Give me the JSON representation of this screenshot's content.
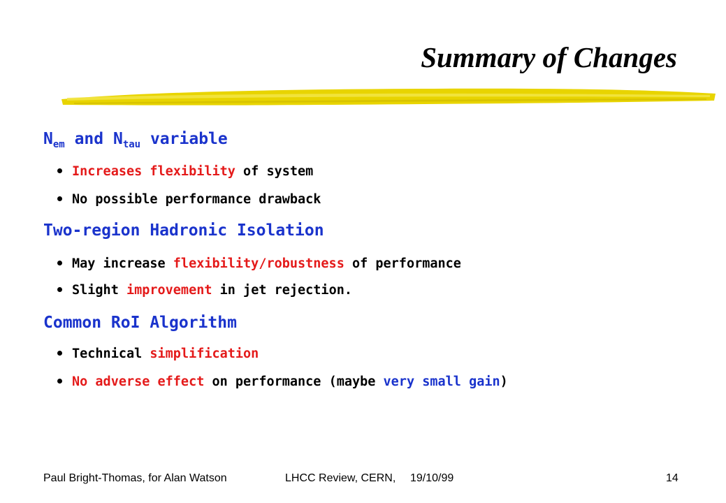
{
  "slide": {
    "title": "Summary of Changes",
    "sections": [
      {
        "heading": {
          "n1": "N",
          "sub1": "em",
          "mid": " and N",
          "sub2": "tau",
          "tail": " variable"
        },
        "bullets": [
          {
            "parts": [
              "Increases flexibility",
              " of system"
            ]
          },
          {
            "parts": [
              "No possible performance drawback"
            ]
          }
        ]
      },
      {
        "heading": {
          "text": "Two-region Hadronic Isolation"
        },
        "bullets": [
          {
            "parts": [
              "May increase ",
              "flexibility/robustness",
              " of performance"
            ]
          },
          {
            "parts": [
              "Slight ",
              "improvement",
              " in jet rejection."
            ]
          }
        ]
      },
      {
        "heading": {
          "text": "Common RoI Algorithm"
        },
        "bullets": [
          {
            "parts": [
              "Technical ",
              "simplification"
            ]
          },
          {
            "parts": [
              "No adverse effect",
              " on performance (maybe ",
              "very small gain",
              ")"
            ]
          }
        ]
      }
    ],
    "footer": {
      "author": "Paul Bright-Thomas, for Alan Watson",
      "event": "LHCC Review, CERN,",
      "date": "19/10/99",
      "page": "14"
    },
    "colors": {
      "heading": "#1a33cc",
      "highlight_red": "#e41a1a",
      "highlight_blue": "#1a33cc",
      "underline": "#e8d400"
    }
  }
}
